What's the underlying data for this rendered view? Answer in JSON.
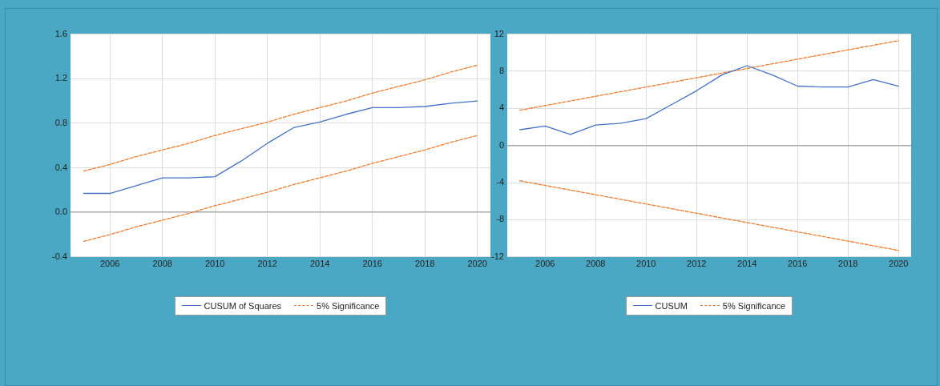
{
  "chart_data": [
    {
      "type": "line",
      "x": [
        2005,
        2006,
        2007,
        2008,
        2009,
        2010,
        2011,
        2012,
        2013,
        2014,
        2015,
        2016,
        2017,
        2018,
        2019,
        2020
      ],
      "xlim": [
        2004.5,
        2020.5
      ],
      "xticks": [
        2006,
        2008,
        2010,
        2012,
        2014,
        2016,
        2018,
        2020
      ],
      "ylim": [
        -0.4,
        1.6
      ],
      "yticks": [
        -0.4,
        {
          "value": 0,
          "label": "0.0"
        },
        0.4,
        0.8,
        1.2,
        1.6
      ],
      "grid": true,
      "legend": "bottom",
      "marker": "none",
      "series": [
        {
          "name": "CUSUM of Squares",
          "color": "#4472c4",
          "line_style": "solid",
          "values": [
            0.17,
            0.17,
            0.24,
            0.31,
            0.31,
            0.32,
            0.46,
            0.62,
            0.76,
            0.81,
            0.88,
            0.94,
            0.94,
            0.95,
            0.98,
            1.0
          ]
        },
        {
          "name": "5% Significance",
          "color": "#ed7d31",
          "line_style": "dashed",
          "values": [
            0.37,
            0.43,
            0.5,
            0.56,
            0.62,
            0.69,
            0.75,
            0.81,
            0.88,
            0.94,
            1.0,
            1.07,
            1.13,
            1.19,
            1.26,
            1.32
          ]
        },
        {
          "color": "#ed7d31",
          "line_style": "dashed",
          "values": [
            -0.26,
            -0.2,
            -0.13,
            -0.07,
            -0.01,
            0.06,
            0.12,
            0.18,
            0.25,
            0.31,
            0.37,
            0.44,
            0.5,
            0.56,
            0.63,
            0.69
          ]
        }
      ]
    },
    {
      "type": "line",
      "x": [
        2005,
        2006,
        2007,
        2008,
        2009,
        2010,
        2011,
        2012,
        2013,
        2014,
        2015,
        2016,
        2017,
        2018,
        2019,
        2020
      ],
      "xlim": [
        2004.5,
        2020.5
      ],
      "xticks": [
        2006,
        2008,
        2010,
        2012,
        2014,
        2016,
        2018,
        2020
      ],
      "ylim": [
        -12,
        12
      ],
      "yticks": [
        -12,
        -8,
        -4,
        0,
        4,
        8,
        12
      ],
      "grid": true,
      "legend": "bottom",
      "marker": "none",
      "series": [
        {
          "name": "CUSUM",
          "color": "#4472c4",
          "line_style": "solid",
          "values": [
            1.7,
            2.1,
            1.2,
            2.2,
            2.4,
            2.9,
            4.4,
            5.9,
            7.6,
            8.6,
            7.6,
            6.4,
            6.3,
            6.3,
            7.1,
            6.4
          ]
        },
        {
          "name": "5% Significance",
          "color": "#ed7d31",
          "line_style": "dashed",
          "values": [
            3.8,
            4.3,
            4.8,
            5.3,
            5.8,
            6.3,
            6.8,
            7.3,
            7.8,
            8.3,
            8.8,
            9.3,
            9.8,
            10.3,
            10.8,
            11.3
          ]
        },
        {
          "color": "#ed7d31",
          "line_style": "dashed",
          "values": [
            -3.8,
            -4.3,
            -4.8,
            -5.3,
            -5.8,
            -6.3,
            -6.8,
            -7.3,
            -7.8,
            -8.3,
            -8.8,
            -9.3,
            -9.8,
            -10.3,
            -10.8,
            -11.3
          ]
        }
      ]
    }
  ]
}
